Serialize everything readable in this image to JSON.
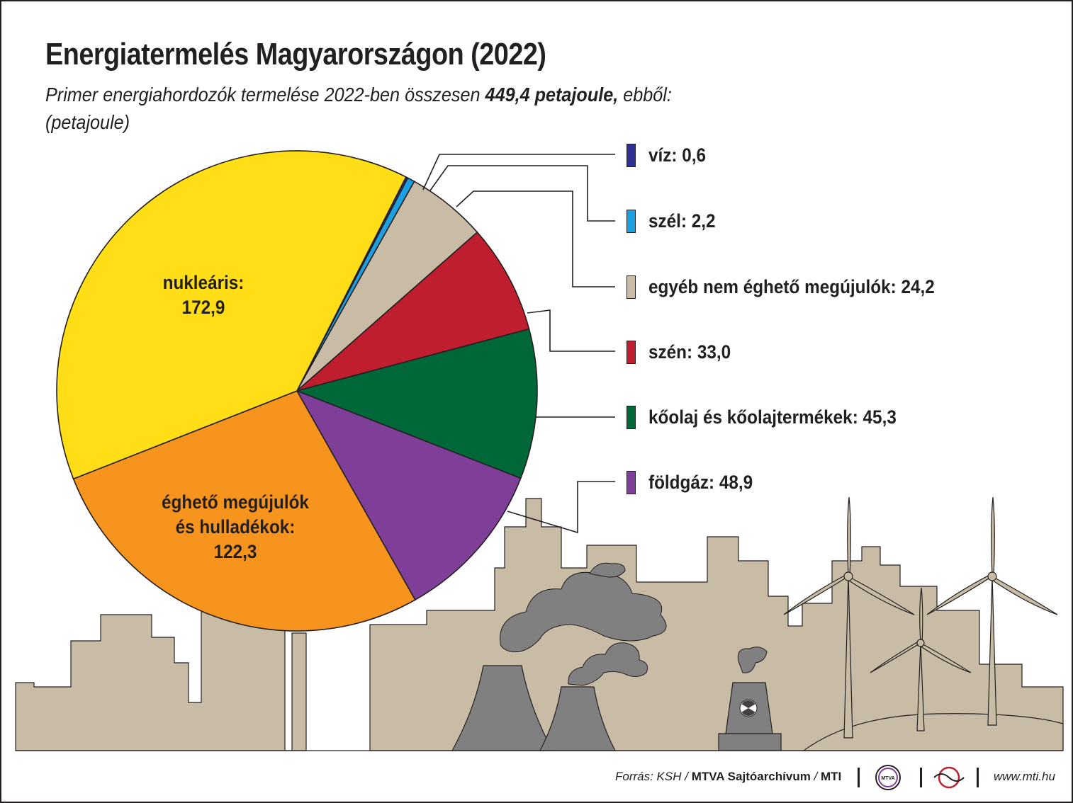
{
  "header": {
    "title": "Energiatermelés Magyarországon (2022)",
    "subtitle_prefix": "Primer energiahordozók termelése 2022-ben összesen ",
    "subtitle_total": "449,4 petajoule,",
    "subtitle_suffix": " ebből:",
    "unit": "(petajoule)"
  },
  "chart_data": {
    "type": "pie",
    "title": "Energiatermelés Magyarországon (2022)",
    "total": 449.4,
    "unit": "petajoule",
    "start_angle_deg": -63,
    "slices": [
      {
        "name": "víz",
        "value": 0.6,
        "color": "#2e3192"
      },
      {
        "name": "szél",
        "value": 2.2,
        "color": "#1ba1e2"
      },
      {
        "name": "egyéb nem éghető megújulók",
        "value": 24.2,
        "color": "#c8bca6"
      },
      {
        "name": "szén",
        "value": 33.0,
        "color": "#be1e2d"
      },
      {
        "name": "kőolaj és kőolajtermékek",
        "value": 45.3,
        "color": "#006838"
      },
      {
        "name": "földgáz",
        "value": 48.9,
        "color": "#7f3f98"
      },
      {
        "name": "éghető megújulók és hulladékok",
        "value": 122.3,
        "color": "#f7941d"
      },
      {
        "name": "nukleáris",
        "value": 172.9,
        "color": "#ffde17"
      }
    ]
  },
  "legend": [
    {
      "label": "víz: 0,6",
      "color": "#2e3192"
    },
    {
      "label": "szél: 2,2",
      "color": "#1ba1e2"
    },
    {
      "label": "egyéb nem éghető megújulók: 24,2",
      "color": "#c8bca6"
    },
    {
      "label": "szén: 33,0",
      "color": "#be1e2d"
    },
    {
      "label": "kőolaj és kőolajtermékek: 45,3",
      "color": "#006838"
    },
    {
      "label": "földgáz: 48,9",
      "color": "#7f3f98"
    }
  ],
  "pie_labels": {
    "nuclear_line1": "nukleáris:",
    "nuclear_line2": "172,9",
    "renew_line1": "éghető megújulók",
    "renew_line2": "és hulladékok:",
    "renew_line3": "122,3"
  },
  "footer": {
    "source_prefix": "Forrás: KSH / ",
    "source_bold": "MTVA Sajtóarchívum",
    "source_sep": " / ",
    "source_bold2": "MTI",
    "logo_text": "MTVA",
    "url": "www.mti.hu"
  },
  "colors": {
    "city": "#c8bca6",
    "smoke": "#808080",
    "outline": "#231f20"
  }
}
